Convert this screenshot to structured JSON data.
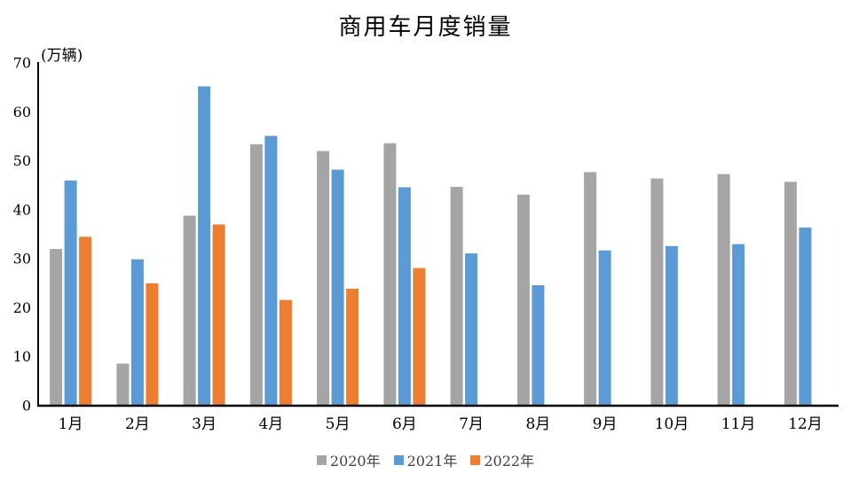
{
  "chart_data": {
    "type": "bar",
    "title": "商用车月度销量",
    "unit_label": "(万辆)",
    "categories": [
      "1月",
      "2月",
      "3月",
      "4月",
      "5月",
      "6月",
      "7月",
      "8月",
      "9月",
      "10月",
      "11月",
      "12月"
    ],
    "series": [
      {
        "name": "2020年",
        "color": "#A5A5A5",
        "values": [
          32.0,
          8.6,
          38.8,
          53.4,
          52.0,
          53.6,
          44.7,
          43.1,
          47.7,
          46.4,
          47.3,
          45.7
        ]
      },
      {
        "name": "2021年",
        "color": "#5B9BD5",
        "values": [
          46.0,
          29.9,
          65.2,
          55.1,
          48.2,
          44.6,
          31.1,
          24.6,
          31.7,
          32.6,
          33.0,
          36.4
        ]
      },
      {
        "name": "2022年",
        "color": "#ED7D31",
        "values": [
          34.5,
          25.0,
          37.0,
          21.6,
          23.9,
          28.1,
          null,
          null,
          null,
          null,
          null,
          null
        ]
      }
    ],
    "ylim": [
      0,
      70
    ],
    "ytick_step": 10,
    "grid": false,
    "legend_position": "bottom",
    "axis_color": "#000000",
    "tick_label_color": "#000000"
  }
}
